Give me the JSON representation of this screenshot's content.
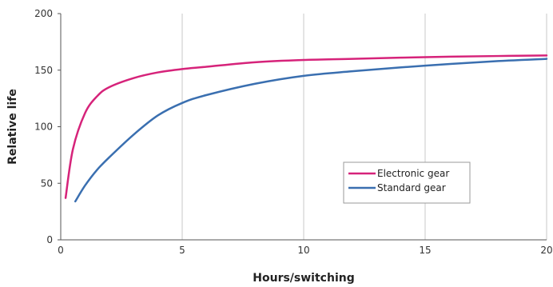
{
  "chart_data": {
    "type": "line",
    "title": "",
    "xlabel": "Hours/switching",
    "ylabel": "Relative life",
    "xlim": [
      0,
      20
    ],
    "ylim": [
      0,
      200
    ],
    "xticks": [
      0,
      5,
      10,
      15,
      20
    ],
    "yticks": [
      0,
      50,
      100,
      150,
      200
    ],
    "grid": "vertical",
    "legend": "lower-right",
    "series": [
      {
        "name": "Electronic gear",
        "color": "#d6237a",
        "x": [
          0.2,
          0.5,
          1,
          1.5,
          2,
          3,
          4,
          5,
          6,
          8,
          10,
          12,
          15,
          18,
          20
        ],
        "y": [
          37,
          80,
          112,
          127,
          135,
          143,
          148,
          151,
          153,
          157,
          159,
          160,
          161.5,
          162.5,
          163
        ]
      },
      {
        "name": "Standard gear",
        "color": "#3a6fb0",
        "x": [
          0.6,
          1,
          1.5,
          2,
          3,
          4,
          5,
          6,
          8,
          10,
          12,
          15,
          18,
          20
        ],
        "y": [
          34,
          48,
          62,
          73,
          93,
          110,
          121,
          128,
          138,
          145,
          149,
          154,
          158,
          160
        ]
      }
    ]
  }
}
